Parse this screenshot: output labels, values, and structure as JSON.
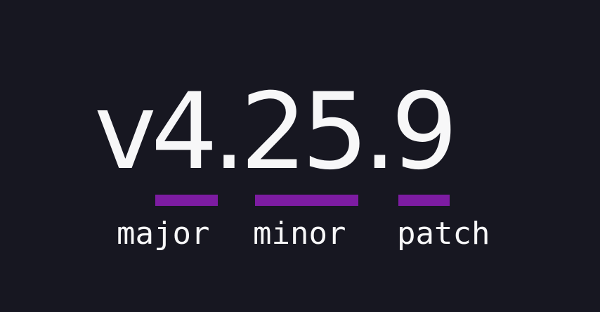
{
  "diagram": {
    "version": {
      "full": "v4.25.9",
      "prefix": "v"
    },
    "segments": [
      {
        "label": "major",
        "value": "4"
      },
      {
        "label": "minor",
        "value": "25"
      },
      {
        "label": "patch",
        "value": "9"
      }
    ]
  },
  "colors": {
    "background": "#171721",
    "text": "#f7f7f8",
    "underline": "#7d1ca2"
  }
}
